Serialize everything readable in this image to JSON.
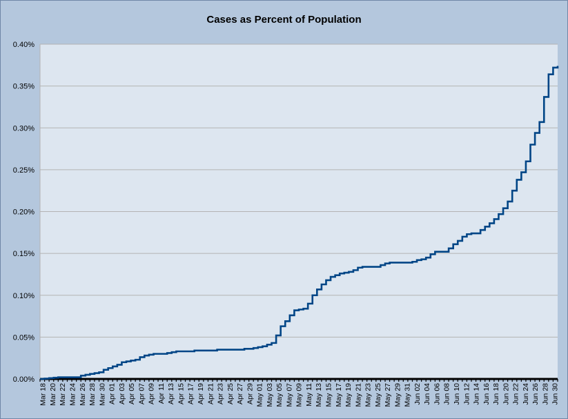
{
  "chart_data": {
    "type": "line",
    "title": "Cases as Percent of Population",
    "xlabel": "",
    "ylabel": "",
    "step": true,
    "ylim": [
      0,
      0.4
    ],
    "y_tick_labels": [
      "0.00%",
      "0.05%",
      "0.10%",
      "0.15%",
      "0.20%",
      "0.25%",
      "0.30%",
      "0.35%",
      "0.40%"
    ],
    "y_ticks": [
      0,
      0.05,
      0.1,
      0.15,
      0.2,
      0.25,
      0.3,
      0.35,
      0.4
    ],
    "x_tick_labels": [
      "Mar 18",
      "Mar 20",
      "Mar 22",
      "Mar 24",
      "Mar 26",
      "Mar 28",
      "Mar 30",
      "Apr 01",
      "Apr 03",
      "Apr 05",
      "Apr 07",
      "Apr 09",
      "Apr 11",
      "Apr 13",
      "Apr 15",
      "Apr 17",
      "Apr 19",
      "Apr 21",
      "Apr 23",
      "Apr 25",
      "Apr 27",
      "Apr 29",
      "May 01",
      "May 03",
      "May 05",
      "May 07",
      "May 09",
      "May 11",
      "May 13",
      "May 15",
      "May 17",
      "May 19",
      "May 21",
      "May 23",
      "May 25",
      "May 27",
      "May 29",
      "May 31",
      "Jun 02",
      "Jun 04",
      "Jun 06",
      "Jun 08",
      "Jun 10",
      "Jun 12",
      "Jun 14",
      "Jun 16",
      "Jun 18",
      "Jun 20",
      "Jun 22",
      "Jun 24",
      "Jun 26",
      "Jun 28",
      "Jun 30"
    ],
    "grid": true,
    "colors": {
      "line": "#004586",
      "plot_bg": "#dde6f0",
      "chart_bg": "#b4c7dd",
      "grid": "#b3b3b3"
    },
    "series": [
      {
        "values": [
          0.0,
          0.0005,
          0.001,
          0.0015,
          0.002,
          0.002,
          0.002,
          0.002,
          0.002,
          0.004,
          0.005,
          0.006,
          0.007,
          0.008,
          0.011,
          0.013,
          0.015,
          0.017,
          0.02,
          0.021,
          0.022,
          0.023,
          0.026,
          0.028,
          0.029,
          0.03,
          0.03,
          0.03,
          0.031,
          0.032,
          0.033,
          0.033,
          0.033,
          0.033,
          0.034,
          0.034,
          0.034,
          0.034,
          0.034,
          0.035,
          0.035,
          0.035,
          0.035,
          0.035,
          0.035,
          0.036,
          0.036,
          0.037,
          0.038,
          0.039,
          0.041,
          0.043,
          0.052,
          0.063,
          0.069,
          0.076,
          0.082,
          0.083,
          0.084,
          0.09,
          0.1,
          0.107,
          0.113,
          0.118,
          0.122,
          0.124,
          0.126,
          0.127,
          0.128,
          0.13,
          0.133,
          0.134,
          0.134,
          0.134,
          0.134,
          0.136,
          0.138,
          0.139,
          0.139,
          0.139,
          0.139,
          0.139,
          0.14,
          0.142,
          0.143,
          0.145,
          0.149,
          0.152,
          0.152,
          0.152,
          0.156,
          0.161,
          0.165,
          0.17,
          0.173,
          0.174,
          0.174,
          0.178,
          0.182,
          0.186,
          0.191,
          0.197,
          0.204,
          0.212,
          0.225,
          0.238,
          0.247,
          0.26,
          0.28,
          0.294,
          0.307,
          0.337,
          0.364,
          0.372,
          0.374
        ]
      }
    ]
  }
}
